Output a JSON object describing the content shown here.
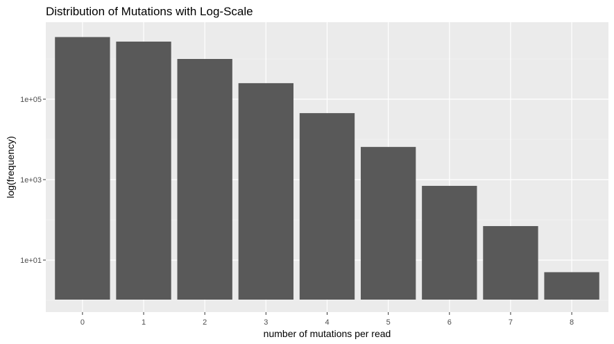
{
  "chart_data": {
    "type": "bar",
    "title": "Distribution of Mutations with Log-Scale",
    "xlabel": "number of mutations per read",
    "ylabel": "log(frequency)",
    "y_scale": "log10",
    "categories": [
      "0",
      "1",
      "2",
      "3",
      "4",
      "5",
      "6",
      "7",
      "8"
    ],
    "values": [
      3500000,
      2700000,
      1000000,
      250000,
      45000,
      6500,
      700,
      70,
      5
    ],
    "ylim": [
      1,
      6000000
    ],
    "y_ticks": [
      10,
      1000,
      100000
    ],
    "y_tick_labels": [
      "1e+01",
      "1e+03",
      "1e+05"
    ],
    "grid": true,
    "legend": "none",
    "colors": {
      "bar": "#595959",
      "panel_background": "#ebebeb",
      "grid_major": "#ffffff",
      "grid_minor": "#f5f5f5"
    }
  }
}
